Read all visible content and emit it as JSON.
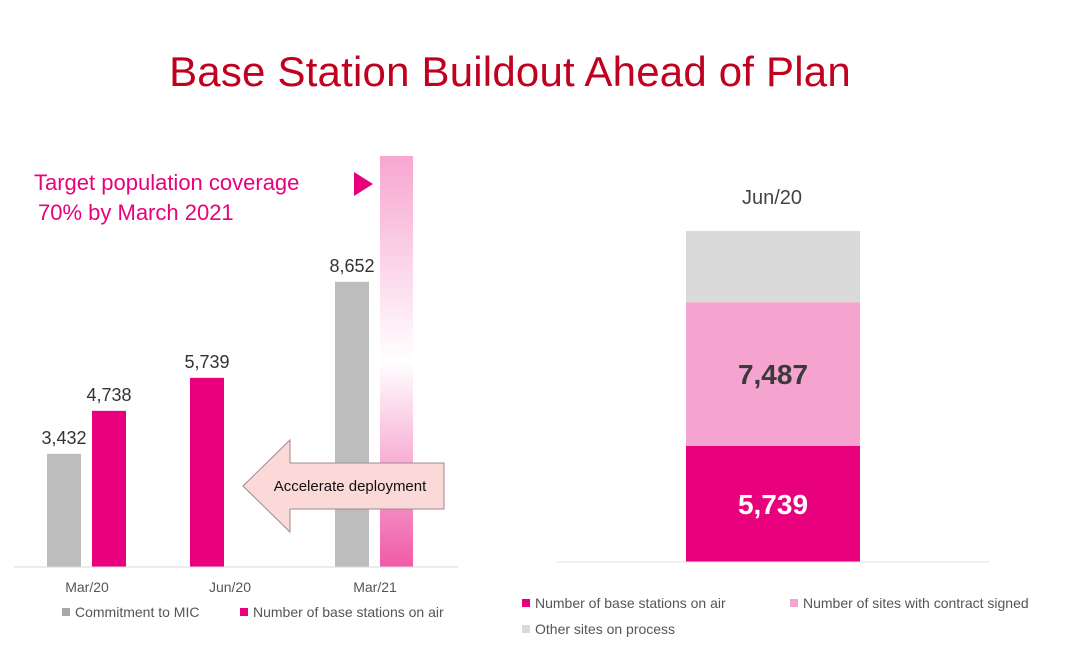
{
  "title": "Base Station Buildout Ahead of Plan",
  "colors": {
    "title": "#c0001f",
    "accent": "#e8007d",
    "commitment": "#bdbdbd",
    "contract": "#f5a3cf",
    "other": "#dadada",
    "note": "#e8007d"
  },
  "annotation": {
    "line1": "Target population coverage",
    "line2": "70% by March 2021",
    "arrow_label": "Accelerate deployment"
  },
  "chart_data": [
    {
      "type": "bar",
      "categories": [
        "Mar/20",
        "Jun/20",
        "Mar/21"
      ],
      "series": [
        {
          "name": "Commitment to MIC",
          "values": [
            3432,
            null,
            8652
          ],
          "labels": [
            "3,432",
            "",
            "8,652"
          ]
        },
        {
          "name": "Number of base stations on air",
          "values": [
            4738,
            5739,
            null
          ],
          "labels": [
            "4,738",
            "5,739",
            ""
          ]
        }
      ],
      "target_bar_category": "Mar/21",
      "ylim": [
        0,
        12500
      ],
      "legend_position": "bottom"
    },
    {
      "type": "bar",
      "stacked": true,
      "categories": [
        "Jun/20"
      ],
      "axis_break": true,
      "series": [
        {
          "name": "Number of base stations on air",
          "values": [
            5739
          ],
          "labels": [
            "5,739"
          ]
        },
        {
          "name": "Number of sites with contract signed",
          "values": [
            7487
          ],
          "labels": [
            "7,487"
          ]
        },
        {
          "name": "Other sites on process",
          "values": [
            null
          ],
          "labels": [
            ""
          ]
        }
      ],
      "legend_position": "bottom"
    }
  ]
}
